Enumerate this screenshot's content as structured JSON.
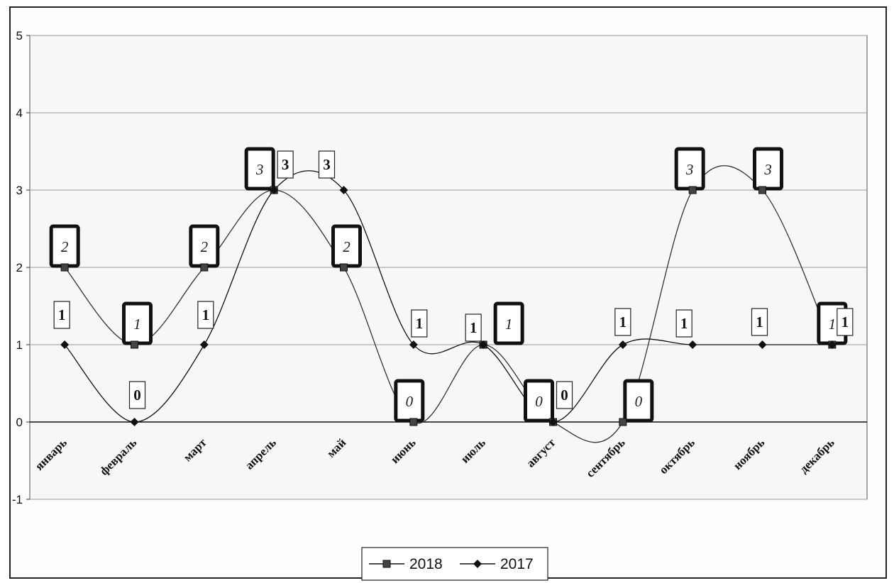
{
  "chart_data": {
    "type": "line",
    "categories": [
      "январь",
      "февраль",
      "март",
      "апрель",
      "май",
      "июнь",
      "июль",
      "август",
      "сентябрь",
      "октябрь",
      "ноябрь",
      "декабрь"
    ],
    "series": [
      {
        "name": "2018",
        "values": [
          2,
          1,
          2,
          3,
          2,
          0,
          1,
          0,
          0,
          3,
          3,
          1
        ],
        "marker": "square",
        "color": "#333333"
      },
      {
        "name": "2017",
        "values": [
          1,
          0,
          1,
          3,
          3,
          1,
          1,
          0,
          1,
          1,
          1,
          1
        ],
        "marker": "diamond",
        "color": "#111111"
      }
    ],
    "ylim": [
      -1,
      5
    ],
    "yticks": [
      "-1",
      "0",
      "1",
      "2",
      "3",
      "4",
      "5"
    ],
    "grid": true,
    "smooth": true,
    "legend": "bottom-center",
    "title": "",
    "xlabel": "",
    "ylabel": ""
  }
}
